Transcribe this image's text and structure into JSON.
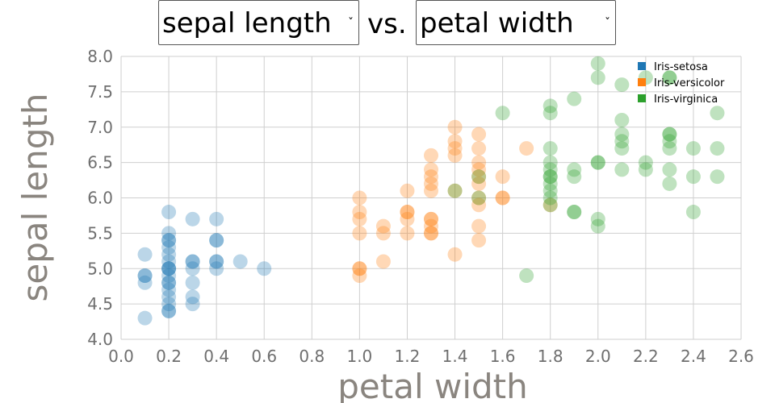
{
  "controls": {
    "y_select": "sepal length",
    "x_select": "petal width",
    "vs_label": "vs."
  },
  "colors": {
    "Iris-setosa": "#1f77b4",
    "Iris-versicolor": "#ff7f0e",
    "Iris-virginica": "#2ca02c",
    "grid": "#cfcfcf",
    "tick": "#6f6f6f",
    "axis_title": "#8a857f"
  },
  "chart_data": {
    "type": "scatter",
    "xlabel": "petal width",
    "ylabel": "sepal length",
    "xlim": [
      0.0,
      2.6
    ],
    "ylim": [
      4.0,
      8.0
    ],
    "x_ticks": [
      "0.0",
      "0.2",
      "0.4",
      "0.6",
      "0.8",
      "1.0",
      "1.2",
      "1.4",
      "1.6",
      "1.8",
      "2.0",
      "2.2",
      "2.4",
      "2.6"
    ],
    "y_ticks": [
      "4.0",
      "4.5",
      "5.0",
      "5.5",
      "6.0",
      "6.5",
      "7.0",
      "7.5",
      "8.0"
    ],
    "grid": true,
    "legend_position": "top-right",
    "legend": [
      "Iris-setosa",
      "Iris-versicolor",
      "Iris-virginica"
    ],
    "series": [
      {
        "name": "Iris-setosa",
        "points": [
          [
            0.1,
            5.2
          ],
          [
            0.1,
            4.9
          ],
          [
            0.1,
            4.9
          ],
          [
            0.1,
            4.8
          ],
          [
            0.1,
            4.3
          ],
          [
            0.2,
            5.8
          ],
          [
            0.2,
            5.5
          ],
          [
            0.2,
            5.4
          ],
          [
            0.2,
            5.4
          ],
          [
            0.2,
            5.3
          ],
          [
            0.2,
            5.2
          ],
          [
            0.2,
            5.1
          ],
          [
            0.2,
            5.0
          ],
          [
            0.2,
            5.0
          ],
          [
            0.2,
            5.0
          ],
          [
            0.2,
            4.9
          ],
          [
            0.2,
            4.8
          ],
          [
            0.2,
            4.8
          ],
          [
            0.2,
            4.7
          ],
          [
            0.2,
            4.6
          ],
          [
            0.2,
            4.5
          ],
          [
            0.2,
            4.4
          ],
          [
            0.2,
            4.4
          ],
          [
            0.3,
            5.7
          ],
          [
            0.3,
            5.1
          ],
          [
            0.3,
            5.1
          ],
          [
            0.3,
            5.0
          ],
          [
            0.3,
            4.8
          ],
          [
            0.3,
            4.6
          ],
          [
            0.3,
            4.5
          ],
          [
            0.4,
            5.7
          ],
          [
            0.4,
            5.4
          ],
          [
            0.4,
            5.4
          ],
          [
            0.4,
            5.1
          ],
          [
            0.4,
            5.1
          ],
          [
            0.4,
            5.0
          ],
          [
            0.5,
            5.1
          ],
          [
            0.6,
            5.0
          ]
        ]
      },
      {
        "name": "Iris-versicolor",
        "points": [
          [
            1.0,
            6.0
          ],
          [
            1.0,
            5.8
          ],
          [
            1.0,
            5.7
          ],
          [
            1.0,
            5.5
          ],
          [
            1.0,
            5.0
          ],
          [
            1.0,
            5.0
          ],
          [
            1.0,
            4.9
          ],
          [
            1.1,
            5.6
          ],
          [
            1.1,
            5.5
          ],
          [
            1.1,
            5.1
          ],
          [
            1.2,
            6.1
          ],
          [
            1.2,
            5.8
          ],
          [
            1.2,
            5.8
          ],
          [
            1.2,
            5.7
          ],
          [
            1.2,
            5.5
          ],
          [
            1.3,
            6.6
          ],
          [
            1.3,
            6.4
          ],
          [
            1.3,
            6.3
          ],
          [
            1.3,
            6.2
          ],
          [
            1.3,
            6.1
          ],
          [
            1.3,
            5.7
          ],
          [
            1.3,
            5.7
          ],
          [
            1.3,
            5.6
          ],
          [
            1.3,
            5.5
          ],
          [
            1.3,
            5.5
          ],
          [
            1.4,
            7.0
          ],
          [
            1.4,
            6.8
          ],
          [
            1.4,
            6.7
          ],
          [
            1.4,
            6.6
          ],
          [
            1.4,
            6.1
          ],
          [
            1.4,
            5.2
          ],
          [
            1.5,
            6.9
          ],
          [
            1.5,
            6.7
          ],
          [
            1.5,
            6.5
          ],
          [
            1.5,
            6.4
          ],
          [
            1.5,
            6.3
          ],
          [
            1.5,
            6.2
          ],
          [
            1.5,
            6.0
          ],
          [
            1.5,
            5.9
          ],
          [
            1.5,
            5.6
          ],
          [
            1.5,
            5.4
          ],
          [
            1.6,
            6.3
          ],
          [
            1.6,
            6.0
          ],
          [
            1.6,
            6.0
          ],
          [
            1.7,
            6.7
          ],
          [
            1.8,
            5.9
          ]
        ]
      },
      {
        "name": "Iris-virginica",
        "points": [
          [
            1.4,
            6.1
          ],
          [
            1.5,
            6.3
          ],
          [
            1.5,
            6.0
          ],
          [
            1.6,
            7.2
          ],
          [
            1.7,
            4.9
          ],
          [
            1.8,
            7.3
          ],
          [
            1.8,
            7.2
          ],
          [
            1.8,
            6.7
          ],
          [
            1.8,
            6.5
          ],
          [
            1.8,
            6.4
          ],
          [
            1.8,
            6.3
          ],
          [
            1.8,
            6.3
          ],
          [
            1.8,
            6.2
          ],
          [
            1.8,
            6.1
          ],
          [
            1.8,
            6.0
          ],
          [
            1.8,
            5.9
          ],
          [
            1.9,
            7.4
          ],
          [
            1.9,
            6.4
          ],
          [
            1.9,
            6.3
          ],
          [
            1.9,
            5.8
          ],
          [
            1.9,
            5.8
          ],
          [
            2.0,
            7.9
          ],
          [
            2.0,
            7.7
          ],
          [
            2.0,
            6.5
          ],
          [
            2.0,
            6.5
          ],
          [
            2.0,
            5.7
          ],
          [
            2.0,
            5.6
          ],
          [
            2.1,
            7.6
          ],
          [
            2.1,
            7.1
          ],
          [
            2.1,
            6.9
          ],
          [
            2.1,
            6.8
          ],
          [
            2.1,
            6.7
          ],
          [
            2.1,
            6.4
          ],
          [
            2.2,
            7.7
          ],
          [
            2.2,
            6.5
          ],
          [
            2.2,
            6.4
          ],
          [
            2.3,
            7.7
          ],
          [
            2.3,
            7.7
          ],
          [
            2.3,
            6.9
          ],
          [
            2.3,
            6.9
          ],
          [
            2.3,
            6.8
          ],
          [
            2.3,
            6.7
          ],
          [
            2.3,
            6.4
          ],
          [
            2.3,
            6.2
          ],
          [
            2.4,
            6.7
          ],
          [
            2.4,
            6.3
          ],
          [
            2.4,
            5.8
          ],
          [
            2.5,
            7.2
          ],
          [
            2.5,
            6.7
          ],
          [
            2.5,
            6.3
          ]
        ]
      }
    ]
  }
}
